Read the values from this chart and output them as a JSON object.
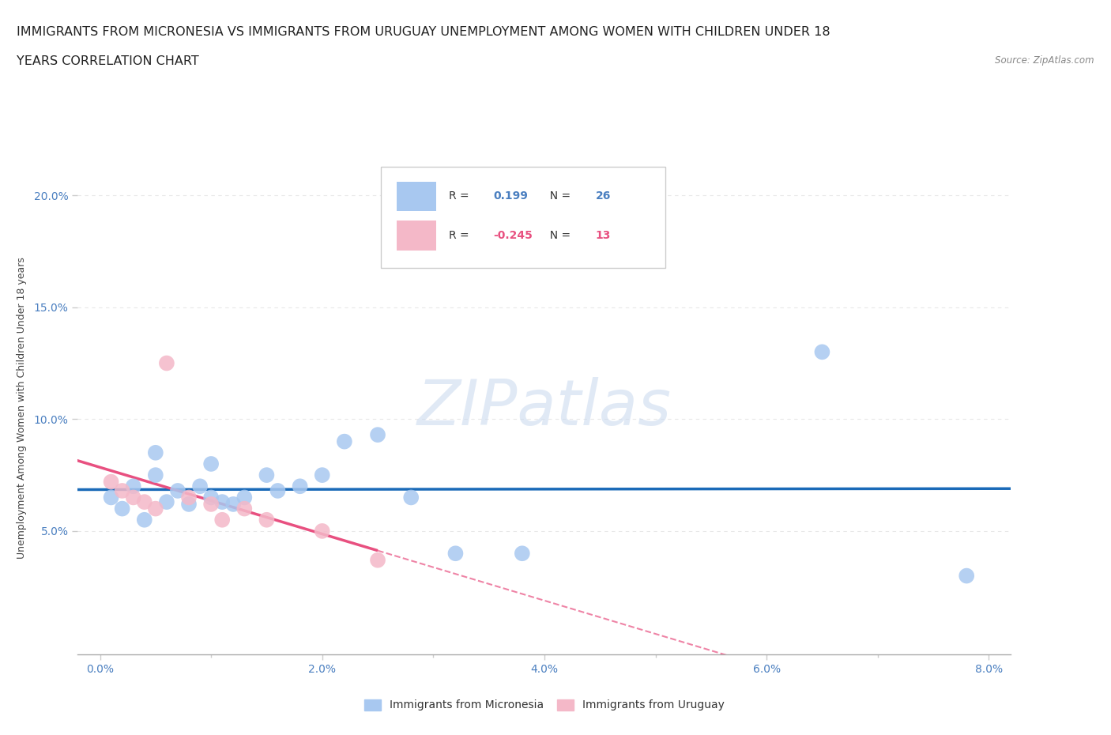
{
  "title_line1": "IMMIGRANTS FROM MICRONESIA VS IMMIGRANTS FROM URUGUAY UNEMPLOYMENT AMONG WOMEN WITH CHILDREN UNDER 18",
  "title_line2": "YEARS CORRELATION CHART",
  "source_text": "Source: ZipAtlas.com",
  "ylabel": "Unemployment Among Women with Children Under 18 years",
  "watermark": "ZIPatlas",
  "micronesia_x": [
    0.001,
    0.002,
    0.003,
    0.004,
    0.005,
    0.005,
    0.006,
    0.007,
    0.008,
    0.009,
    0.01,
    0.01,
    0.011,
    0.012,
    0.013,
    0.015,
    0.016,
    0.018,
    0.02,
    0.022,
    0.025,
    0.028,
    0.032,
    0.038,
    0.065,
    0.078
  ],
  "micronesia_y": [
    0.065,
    0.06,
    0.07,
    0.055,
    0.075,
    0.085,
    0.063,
    0.068,
    0.062,
    0.07,
    0.065,
    0.08,
    0.063,
    0.062,
    0.065,
    0.075,
    0.068,
    0.07,
    0.075,
    0.09,
    0.093,
    0.065,
    0.04,
    0.04,
    0.13,
    0.03
  ],
  "uruguay_x": [
    0.001,
    0.002,
    0.003,
    0.004,
    0.005,
    0.006,
    0.008,
    0.01,
    0.011,
    0.013,
    0.015,
    0.02,
    0.025
  ],
  "uruguay_y": [
    0.072,
    0.068,
    0.065,
    0.063,
    0.06,
    0.125,
    0.065,
    0.062,
    0.055,
    0.06,
    0.055,
    0.05,
    0.037
  ],
  "micronesia_color": "#a8c8f0",
  "uruguay_color": "#f4b8c8",
  "micronesia_line_color": "#1a6ab8",
  "uruguay_line_color": "#e85080",
  "micronesia_R": 0.199,
  "micronesia_N": 26,
  "uruguay_R": -0.245,
  "uruguay_N": 13,
  "xlim": [
    -0.002,
    0.082
  ],
  "ylim": [
    -0.005,
    0.215
  ],
  "xticks": [
    0.0,
    0.02,
    0.04,
    0.06,
    0.08
  ],
  "yticks": [
    0.05,
    0.1,
    0.15,
    0.2
  ],
  "ytick_labels": [
    "5.0%",
    "10.0%",
    "15.0%",
    "20.0%"
  ],
  "xtick_labels": [
    "0.0%",
    "2.0%",
    "4.0%",
    "6.0%",
    "8.0%"
  ],
  "legend_micronesia": "Immigrants from Micronesia",
  "legend_uruguay": "Immigrants from Uruguay",
  "background_color": "#ffffff",
  "grid_color": "#e8e8e8",
  "title_fontsize": 11.5,
  "label_color": "#4a7fc0"
}
